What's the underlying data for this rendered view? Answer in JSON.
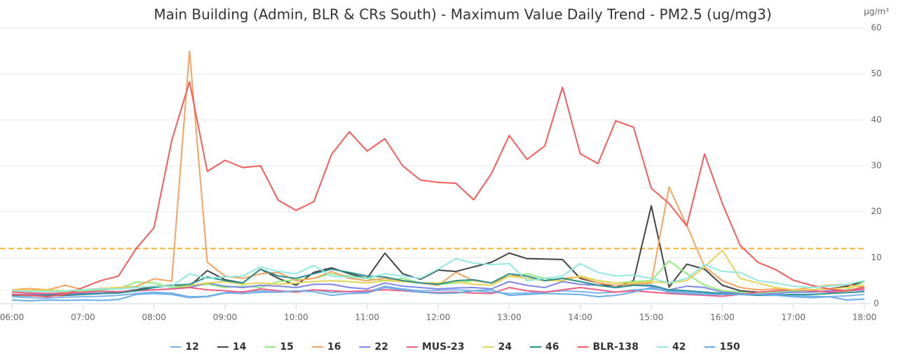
{
  "chart_data": {
    "type": "line",
    "title": "Main Building (Admin, BLR & CRs South) - Maximum Value Daily Trend - PM2.5 (ug/mg3)",
    "y_axis_label": "μg/m³",
    "x": [
      6,
      6.25,
      6.5,
      6.75,
      7,
      7.25,
      7.5,
      7.75,
      8,
      8.25,
      8.5,
      8.75,
      9,
      9.25,
      9.5,
      9.75,
      10,
      10.25,
      10.5,
      10.75,
      11,
      11.25,
      11.5,
      11.75,
      12,
      12.25,
      12.5,
      12.75,
      13,
      13.25,
      13.5,
      13.75,
      14,
      14.25,
      14.5,
      14.75,
      15,
      15.25,
      15.5,
      15.75,
      16,
      16.25,
      16.5,
      16.75,
      17,
      17.25,
      17.5,
      17.75,
      18
    ],
    "xlim": [
      6,
      18
    ],
    "xticks": [
      {
        "value": 6,
        "label": "06:00"
      },
      {
        "value": 7,
        "label": "07:00"
      },
      {
        "value": 8,
        "label": "08:00"
      },
      {
        "value": 9,
        "label": "09:00"
      },
      {
        "value": 10,
        "label": "10:00"
      },
      {
        "value": 11,
        "label": "11:00"
      },
      {
        "value": 12,
        "label": "12:00"
      },
      {
        "value": 13,
        "label": "13:00"
      },
      {
        "value": 14,
        "label": "14:00"
      },
      {
        "value": 15,
        "label": "15:00"
      },
      {
        "value": 16,
        "label": "16:00"
      },
      {
        "value": 17,
        "label": "17:00"
      },
      {
        "value": 18,
        "label": "18:00"
      }
    ],
    "ylim": [
      0,
      60
    ],
    "yticks": [
      0,
      10,
      20,
      30,
      40,
      50,
      60
    ],
    "grid": true,
    "legend": "bottom",
    "plot_lines": [
      {
        "value": 12,
        "color": "#f7b23b"
      }
    ],
    "series": [
      {
        "name": "12",
        "color": "#7cb5ec",
        "values": [
          1.5,
          1.3,
          1.2,
          1.4,
          1.5,
          1.6,
          1.8,
          2.2,
          2.5,
          2.3,
          1.5,
          1.6,
          2.4,
          2.6,
          2.8,
          2.5,
          2.7,
          3,
          2.4,
          2.6,
          2.5,
          3.8,
          3.2,
          2.8,
          2.9,
          3,
          2.8,
          2.5,
          2.2,
          2.3,
          2.5,
          2.8,
          2.6,
          2.3,
          2.5,
          3,
          3.2,
          2.8,
          2.5,
          2.2,
          2,
          2,
          2.2,
          2,
          1.8,
          1.6,
          1.5,
          1.7,
          2
        ]
      },
      {
        "name": "14",
        "color": "#434348",
        "values": [
          2,
          1.8,
          1.7,
          1.8,
          2,
          2.2,
          2.5,
          3,
          3.8,
          4,
          3.8,
          7.2,
          5.2,
          4.5,
          7.5,
          5.5,
          4,
          6.8,
          7.8,
          6.5,
          5.5,
          11,
          6.5,
          5.3,
          7.3,
          7,
          8,
          9,
          11,
          9.8,
          9.7,
          9.6,
          5.5,
          4.5,
          3.5,
          5,
          21.3,
          3.6,
          8.6,
          7.5,
          4,
          2.8,
          2.5,
          2.5,
          2.8,
          3,
          3.2,
          3.8,
          4.8
        ]
      },
      {
        "name": "15",
        "color": "#90ed7d",
        "values": [
          2.5,
          2.6,
          2.8,
          2.5,
          2.7,
          3,
          3.2,
          4.7,
          4.5,
          3.5,
          3.8,
          4.2,
          3.5,
          3.8,
          3.5,
          4.8,
          5.2,
          5.5,
          6.5,
          6,
          5.5,
          5,
          5.5,
          4.5,
          4.2,
          4.5,
          5,
          4.5,
          6,
          6.5,
          5.5,
          5,
          6,
          5,
          4.5,
          4.8,
          5,
          9.3,
          6.5,
          4,
          2.8,
          2.5,
          2.3,
          2.5,
          2.8,
          2.5,
          2.6,
          3,
          4.8
        ]
      },
      {
        "name": "16",
        "color": "#f7a35c",
        "values": [
          3,
          3.3,
          3,
          4,
          3,
          3.3,
          3.5,
          3.7,
          5.4,
          4.9,
          55,
          9,
          6,
          5.5,
          6.5,
          6.8,
          5,
          5.5,
          7,
          5.5,
          5,
          5.5,
          5,
          4.5,
          4,
          6.8,
          5,
          4.5,
          6,
          6,
          5,
          5.5,
          5.8,
          4.5,
          4,
          4.2,
          4.5,
          25.4,
          17,
          8,
          5,
          3.5,
          3,
          3.2,
          3,
          3.5,
          4,
          4.2,
          3.5
        ]
      },
      {
        "name": "22",
        "color": "#8085e9",
        "values": [
          2,
          2,
          2.1,
          2,
          2.2,
          2.3,
          2.5,
          2.8,
          3,
          3.2,
          3.5,
          4.5,
          3.8,
          3.5,
          4,
          3.8,
          3.5,
          4.2,
          4.2,
          3.5,
          3.2,
          4.5,
          3.8,
          3.5,
          3.2,
          3.4,
          3.5,
          3.2,
          4.8,
          4,
          3.5,
          4.8,
          4.2,
          4,
          3.5,
          4,
          3.8,
          3,
          3.8,
          3.5,
          2.5,
          2.2,
          2,
          2.2,
          2.5,
          2.5,
          2.8,
          2.8,
          3
        ]
      },
      {
        "name": "MUS-23",
        "color": "#f15c80",
        "values": [
          2.5,
          2.3,
          2.2,
          2.3,
          2.5,
          2.7,
          2.6,
          2.8,
          3,
          3.2,
          3.5,
          3,
          2.8,
          2.5,
          3.2,
          2.8,
          2.5,
          3,
          2.8,
          2.6,
          2.8,
          3,
          2.8,
          2.5,
          2.4,
          2.5,
          2.3,
          2.2,
          3.5,
          2.8,
          2.5,
          3,
          3.5,
          3,
          2.5,
          2.8,
          2.5,
          2.2,
          2,
          1.8,
          1.6,
          2,
          2.5,
          2.8,
          3,
          2.8,
          2.5,
          2.8,
          3.2
        ]
      },
      {
        "name": "24",
        "color": "#e4d354",
        "values": [
          3,
          2.9,
          3,
          2.8,
          3,
          3.2,
          3.5,
          3.5,
          3.8,
          4,
          4,
          4.5,
          4.8,
          4.2,
          4.5,
          4.2,
          4.5,
          4.8,
          5,
          4.8,
          4.5,
          5,
          4.8,
          4.5,
          4.5,
          4.8,
          4.2,
          4,
          6,
          5.5,
          5,
          5,
          6,
          5,
          4.5,
          4.5,
          4.8,
          4.5,
          5,
          8,
          11.6,
          5.5,
          4.5,
          3.5,
          3,
          3,
          3.2,
          3.5,
          4
        ]
      },
      {
        "name": "46",
        "color": "#2b908f",
        "values": [
          1.8,
          1.7,
          1.8,
          1.9,
          2,
          2.2,
          2.3,
          2.8,
          3.5,
          4,
          4.2,
          5.8,
          5,
          4.5,
          7.5,
          6,
          5.5,
          6.5,
          7.5,
          6.8,
          6,
          5.8,
          5,
          4.5,
          4.2,
          5,
          5.2,
          4.5,
          6.5,
          6,
          5,
          5.5,
          4.8,
          4,
          3.5,
          4,
          4,
          3,
          2.8,
          2.5,
          2.2,
          2,
          1.8,
          1.8,
          2,
          2,
          2.2,
          2.4,
          2.6
        ]
      },
      {
        "name": "BLR-138",
        "color": "#f45b5b",
        "values": [
          2,
          1.8,
          1.5,
          2,
          3.5,
          5,
          6,
          12,
          16.5,
          35.5,
          48.3,
          28.8,
          31.2,
          29.6,
          30,
          22.5,
          20.3,
          22.2,
          32.5,
          37.4,
          33.2,
          35.9,
          30,
          26.9,
          26.4,
          26.2,
          22.6,
          28.3,
          36.6,
          31.4,
          34.3,
          47.1,
          32.6,
          30.5,
          39.8,
          38.4,
          25.1,
          21.8,
          16.9,
          32.6,
          21.8,
          12.7,
          9,
          7.4,
          5.1,
          4,
          3.2,
          2.8,
          3.6
        ]
      },
      {
        "name": "42",
        "color": "#91e8e1",
        "values": [
          2.8,
          2.7,
          2.6,
          2.8,
          3,
          3.2,
          3.2,
          3.5,
          3.8,
          3.8,
          6.5,
          5.5,
          5.8,
          6,
          8,
          7,
          6.5,
          8.3,
          6,
          5.8,
          5.5,
          6.5,
          6,
          5.5,
          7.5,
          9.8,
          8.8,
          8.5,
          8.7,
          5,
          5.5,
          6,
          8.7,
          6.8,
          6,
          6.2,
          5.5,
          4.5,
          5.5,
          8.5,
          7,
          6.8,
          5,
          4.5,
          3.8,
          3.5,
          3.8,
          4.2,
          5
        ]
      },
      {
        "name": "150",
        "color": "#6aaee8",
        "values": [
          0.8,
          0.6,
          0.8,
          0.7,
          0.8,
          0.7,
          0.9,
          2,
          2.2,
          2,
          1.3,
          1.5,
          2.3,
          2.2,
          2.5,
          2.5,
          2.8,
          2.6,
          1.8,
          2.2,
          2.3,
          3.5,
          3,
          2.5,
          2.2,
          2.3,
          2.8,
          3,
          1.8,
          2,
          2.2,
          2.1,
          2,
          1.5,
          1.8,
          2.5,
          3.5,
          2.5,
          2.2,
          2,
          2,
          2,
          2,
          1.8,
          1.5,
          1.3,
          1.5,
          0.8,
          1
        ]
      }
    ]
  }
}
